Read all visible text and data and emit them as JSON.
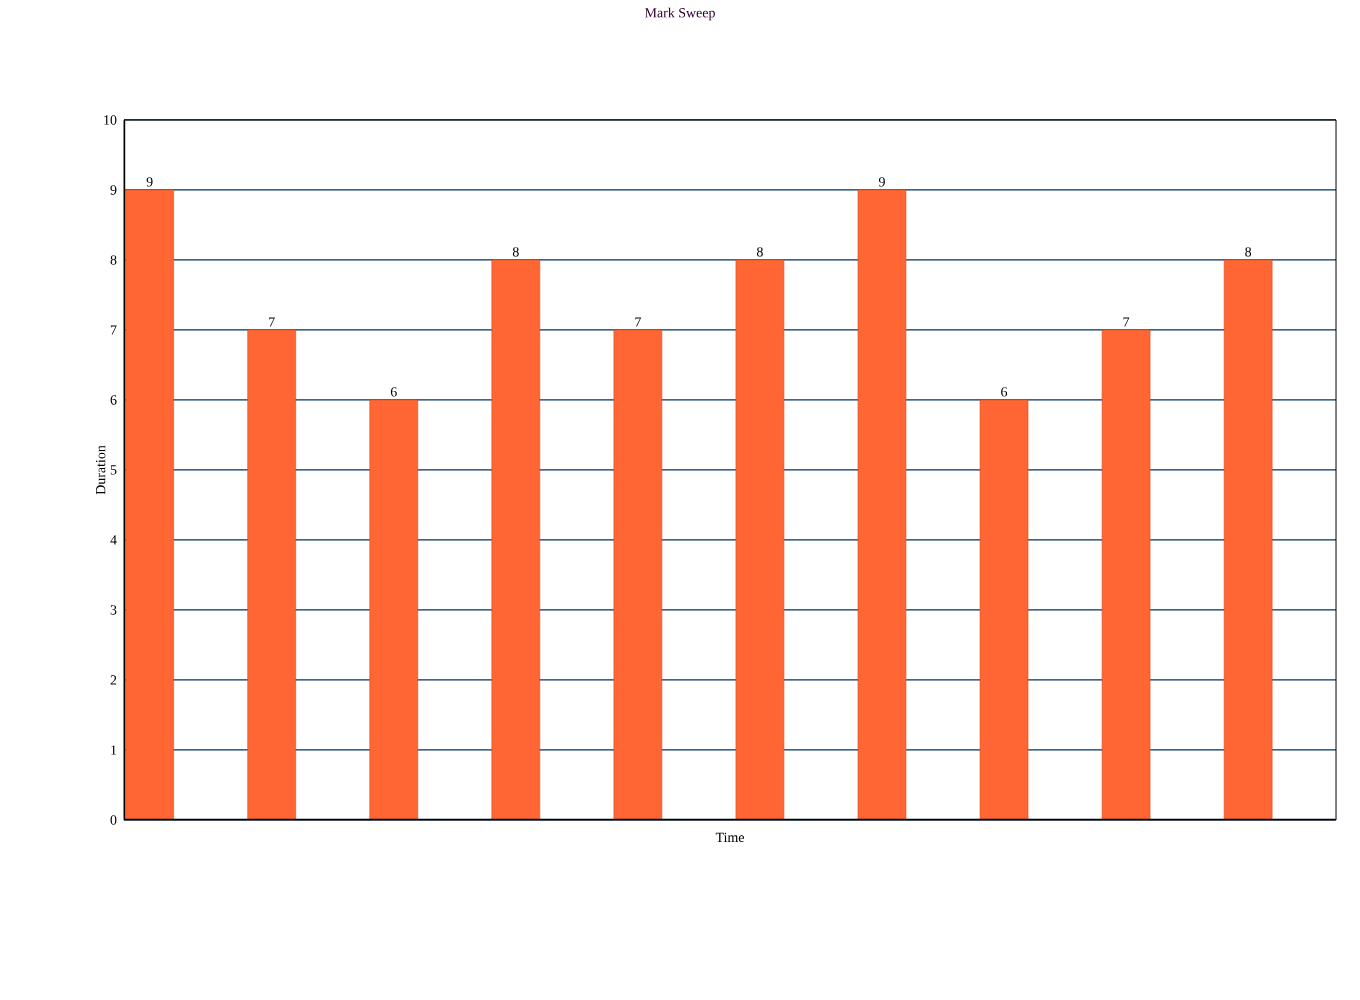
{
  "chart_data": {
    "type": "bar",
    "title": "Mark Sweep",
    "xlabel": "Time",
    "ylabel": "Duration",
    "categories": [
      null,
      null,
      null,
      null,
      null,
      null,
      null,
      null,
      null,
      null
    ],
    "values": [
      9,
      7,
      6,
      8,
      7,
      8,
      9,
      6,
      7,
      8
    ],
    "color": "#ff6633",
    "ylim": [
      0,
      10
    ],
    "yticks": [
      0,
      1,
      2,
      3,
      4,
      5,
      6,
      7,
      8,
      9,
      10
    ],
    "grid": "y",
    "data_labels": true,
    "tick_labels": "y"
  }
}
